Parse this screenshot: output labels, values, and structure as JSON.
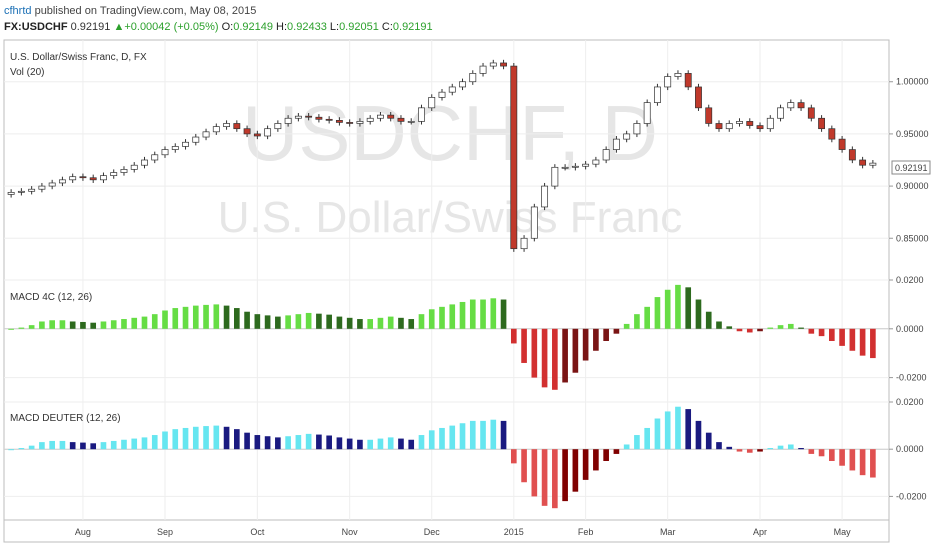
{
  "header": {
    "author": "cfhrtd",
    "published": " published on TradingView.com, May 08, 2015"
  },
  "quote": {
    "symbol": "FX:USDCHF",
    "last": "0.92191",
    "change": "+0.00042 (+0.05%)",
    "open_label": "O:",
    "open": "0.92149",
    "high_label": "H:",
    "high": "0.92433",
    "low_label": "L:",
    "low": "0.92051",
    "close_label": "C:",
    "close": "0.92191"
  },
  "price_pane": {
    "title": "U.S. Dollar/Swiss Franc, D, FX",
    "vol_label": "Vol (20)",
    "watermark_symbol": "USDCHF, D",
    "watermark_name": "U.S. Dollar/Swiss Franc",
    "last_price_label": "0.92191"
  },
  "macd4c_pane": {
    "title": "MACD 4C (12, 26)"
  },
  "macddeuter_pane": {
    "title": "MACD DEUTER (12, 26)"
  },
  "colors": {
    "up_candle": "#ffffff",
    "down_candle": "#c0392b",
    "hist_up_strong": "#66dd44",
    "hist_up_weak": "#2d6a1e",
    "hist_down_strong": "#d23030",
    "hist_down_weak": "#7a1414",
    "deuter_up_strong": "#66e6f0",
    "deuter_up_weak": "#1a1a80",
    "deuter_down_strong": "#e05050",
    "deuter_down_weak": "#800000"
  },
  "chart_data": [
    {
      "type": "candlestick",
      "title": "U.S. Dollar/Swiss Franc, D, FX",
      "x_ticks": [
        "Aug",
        "Sep",
        "Oct",
        "Nov",
        "Dec",
        "2015",
        "Feb",
        "Mar",
        "Apr",
        "May"
      ],
      "y_ticks": [
        "0.85000",
        "0.90000",
        "0.95000",
        "1.00000"
      ],
      "ylim": [
        0.81,
        1.04
      ],
      "series_close_approx": [
        0.894,
        0.895,
        0.897,
        0.9,
        0.903,
        0.906,
        0.909,
        0.908,
        0.906,
        0.91,
        0.913,
        0.916,
        0.92,
        0.925,
        0.93,
        0.935,
        0.938,
        0.942,
        0.947,
        0.952,
        0.957,
        0.96,
        0.955,
        0.95,
        0.948,
        0.955,
        0.96,
        0.965,
        0.967,
        0.966,
        0.964,
        0.963,
        0.961,
        0.96,
        0.962,
        0.965,
        0.968,
        0.965,
        0.962,
        0.962,
        0.975,
        0.985,
        0.99,
        0.995,
        1.0,
        1.008,
        1.015,
        1.018,
        1.015,
        0.84,
        0.85,
        0.88,
        0.9,
        0.918,
        0.918,
        0.919,
        0.921,
        0.925,
        0.935,
        0.945,
        0.95,
        0.96,
        0.98,
        0.995,
        1.005,
        1.008,
        0.995,
        0.975,
        0.96,
        0.955,
        0.96,
        0.962,
        0.958,
        0.955,
        0.965,
        0.975,
        0.98,
        0.975,
        0.965,
        0.955,
        0.945,
        0.935,
        0.925,
        0.92,
        0.922
      ],
      "last_value": 0.92191
    },
    {
      "type": "bar",
      "title": "MACD 4C (12, 26)",
      "y_ticks": [
        "-0.0200",
        "0.0000",
        "0.0200"
      ],
      "ylim": [
        -0.03,
        0.02
      ],
      "values": [
        0.0,
        0.0005,
        0.0015,
        0.003,
        0.0035,
        0.0035,
        0.003,
        0.0028,
        0.0025,
        0.003,
        0.0035,
        0.004,
        0.0045,
        0.005,
        0.006,
        0.0075,
        0.0085,
        0.009,
        0.0095,
        0.0098,
        0.01,
        0.0095,
        0.0085,
        0.007,
        0.006,
        0.0055,
        0.005,
        0.0055,
        0.006,
        0.0065,
        0.0062,
        0.0058,
        0.005,
        0.0045,
        0.004,
        0.004,
        0.0045,
        0.005,
        0.0045,
        0.004,
        0.006,
        0.008,
        0.009,
        0.01,
        0.011,
        0.012,
        0.012,
        0.0125,
        0.012,
        -0.006,
        -0.014,
        -0.02,
        -0.024,
        -0.025,
        -0.022,
        -0.018,
        -0.013,
        -0.009,
        -0.005,
        -0.002,
        0.002,
        0.006,
        0.009,
        0.013,
        0.016,
        0.018,
        0.017,
        0.012,
        0.007,
        0.003,
        0.001,
        -0.001,
        -0.0015,
        -0.001,
        0.0005,
        0.0015,
        0.002,
        0.0005,
        -0.002,
        -0.003,
        -0.005,
        -0.007,
        -0.009,
        -0.011,
        -0.012
      ]
    },
    {
      "type": "bar",
      "title": "MACD DEUTER (12, 26)",
      "y_ticks": [
        "-0.0200",
        "0.0000",
        "0.0200"
      ],
      "ylim": [
        -0.03,
        0.02
      ],
      "values": [
        0.0,
        0.0005,
        0.0015,
        0.003,
        0.0035,
        0.0035,
        0.003,
        0.0028,
        0.0025,
        0.003,
        0.0035,
        0.004,
        0.0045,
        0.005,
        0.006,
        0.0075,
        0.0085,
        0.009,
        0.0095,
        0.0098,
        0.01,
        0.0095,
        0.0085,
        0.007,
        0.006,
        0.0055,
        0.005,
        0.0055,
        0.006,
        0.0065,
        0.0062,
        0.0058,
        0.005,
        0.0045,
        0.004,
        0.004,
        0.0045,
        0.005,
        0.0045,
        0.004,
        0.006,
        0.008,
        0.009,
        0.01,
        0.011,
        0.012,
        0.012,
        0.0125,
        0.012,
        -0.006,
        -0.014,
        -0.02,
        -0.024,
        -0.025,
        -0.022,
        -0.018,
        -0.013,
        -0.009,
        -0.005,
        -0.002,
        0.002,
        0.006,
        0.009,
        0.013,
        0.016,
        0.018,
        0.017,
        0.012,
        0.007,
        0.003,
        0.001,
        -0.001,
        -0.0015,
        -0.001,
        0.0005,
        0.0015,
        0.002,
        0.0005,
        -0.002,
        -0.003,
        -0.005,
        -0.007,
        -0.009,
        -0.011,
        -0.012
      ]
    }
  ]
}
